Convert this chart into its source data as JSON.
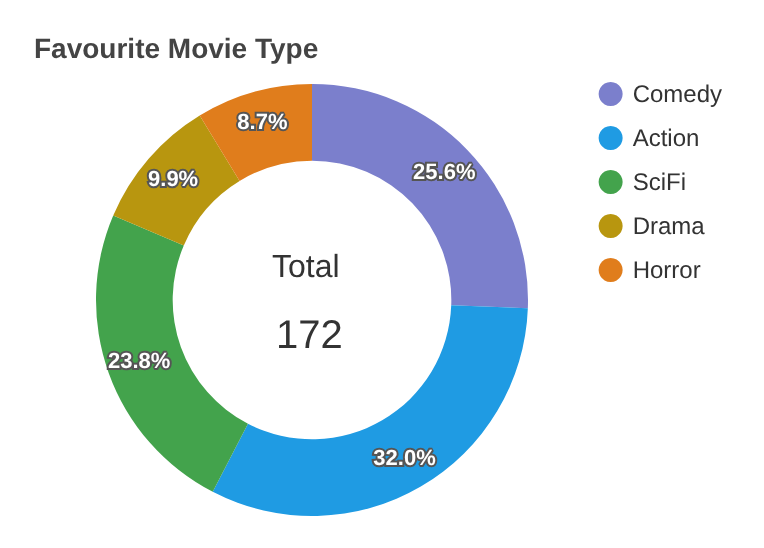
{
  "chart_data": {
    "type": "donut",
    "title": "Favourite Movie Type",
    "categories": [
      "Comedy",
      "Action",
      "SciFi",
      "Drama",
      "Horror"
    ],
    "values": [
      25.6,
      32.0,
      23.8,
      9.9,
      8.7
    ],
    "colors": [
      "#7b7fcc",
      "#1f9be3",
      "#43a34c",
      "#b8960f",
      "#e07d1c"
    ],
    "value_labels": [
      "25.6%",
      "32.0%",
      "23.8%",
      "9.9%",
      "8.7%"
    ],
    "annotations": [
      "Total",
      "172"
    ],
    "legend": "right"
  }
}
